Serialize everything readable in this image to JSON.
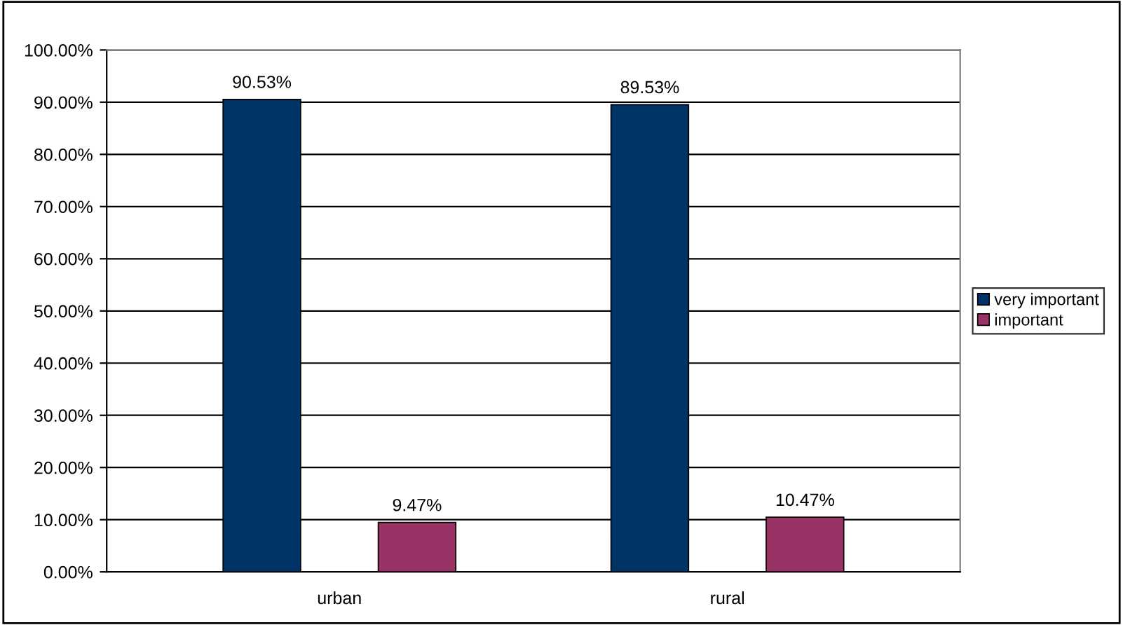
{
  "chart_data": {
    "type": "bar",
    "categories": [
      "urban",
      "rural"
    ],
    "series": [
      {
        "name": "very important",
        "color": "#003366",
        "values": [
          90.53,
          89.53
        ],
        "value_labels": [
          "90.53%",
          "89.53%"
        ]
      },
      {
        "name": "important",
        "color": "#993366",
        "values": [
          9.47,
          10.47
        ],
        "value_labels": [
          "9.47%",
          "10.47%"
        ]
      }
    ],
    "ylim": [
      0,
      100
    ],
    "yticks": [
      {
        "value": 0,
        "label": "0.00%"
      },
      {
        "value": 10,
        "label": "10.00%"
      },
      {
        "value": 20,
        "label": "20.00%"
      },
      {
        "value": 30,
        "label": "30.00%"
      },
      {
        "value": 40,
        "label": "40.00%"
      },
      {
        "value": 50,
        "label": "50.00%"
      },
      {
        "value": 60,
        "label": "60.00%"
      },
      {
        "value": 70,
        "label": "70.00%"
      },
      {
        "value": 80,
        "label": "80.00%"
      },
      {
        "value": 90,
        "label": "90.00%"
      },
      {
        "value": 100,
        "label": "100.00%"
      }
    ],
    "grid": "y",
    "legend": "right"
  }
}
